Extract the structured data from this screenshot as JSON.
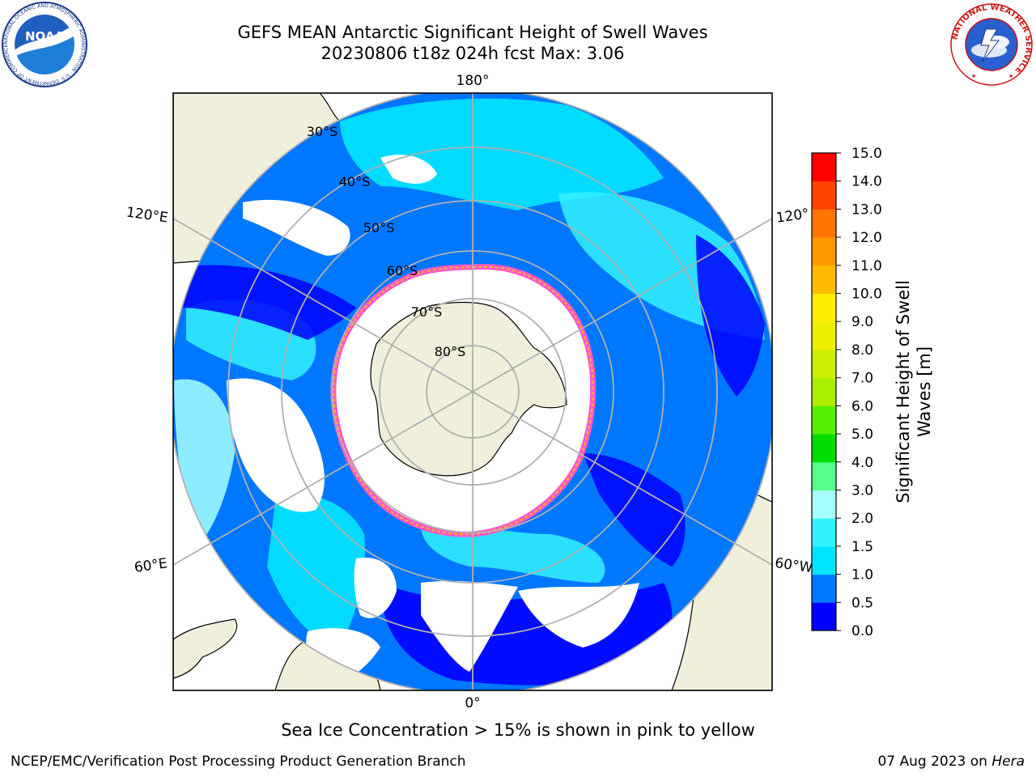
{
  "title": {
    "line1": "GEFS MEAN Antarctic Significant Height of Swell Waves",
    "line2": "20230806 t18z 024h fcst   Max: 3.06"
  },
  "map": {
    "projection": "south-polar-stereographic",
    "lon_labels": [
      "180°",
      "120°E",
      "120°",
      "60°E",
      "60°W",
      "0°"
    ],
    "lat_labels": [
      "30°S",
      "40°S",
      "50°S",
      "60°S",
      "70°S",
      "80°S"
    ],
    "colors": {
      "land": "#efefdc",
      "ice_region": "#ffffff",
      "ice_edge": [
        "#ff55cc",
        "#ffaa33"
      ],
      "graticule": "#b0b0b0"
    }
  },
  "colorbar": {
    "label_line1": "Significant Height of Swell",
    "label_line2": "Waves [m]",
    "ticks": [
      "0.0",
      "0.5",
      "1.0",
      "1.5",
      "2.0",
      "3.0",
      "4.0",
      "5.0",
      "6.0",
      "7.0",
      "8.0",
      "9.0",
      "10.0",
      "11.0",
      "12.0",
      "13.0",
      "14.0",
      "15.0"
    ],
    "colors": [
      "#0000ff",
      "#0077ff",
      "#00e5ff",
      "#33f2ff",
      "#a6ffff",
      "#55ff88",
      "#00dd00",
      "#55ee00",
      "#aaee00",
      "#ccee00",
      "#eeee00",
      "#ffee00",
      "#ffbb00",
      "#ff9900",
      "#ff7700",
      "#ff4400",
      "#ff0000"
    ]
  },
  "subtitle": "Sea Ice Concentration > 15% is shown in pink to yellow",
  "footer": {
    "left": "NCEP/EMC/Verification Post Processing Product Generation Branch",
    "right_prefix": "07 Aug 2023 on ",
    "right_host": "Hera"
  },
  "logos": {
    "noaa_text": "NOAA",
    "noaa_ring_text": "NATIONAL OCEANIC AND ATMOSPHERIC ADMINISTRATION · U.S. DEPARTMENT OF COMMERCE",
    "nws_ring_text": "NATIONAL WEATHER SERVICE"
  }
}
